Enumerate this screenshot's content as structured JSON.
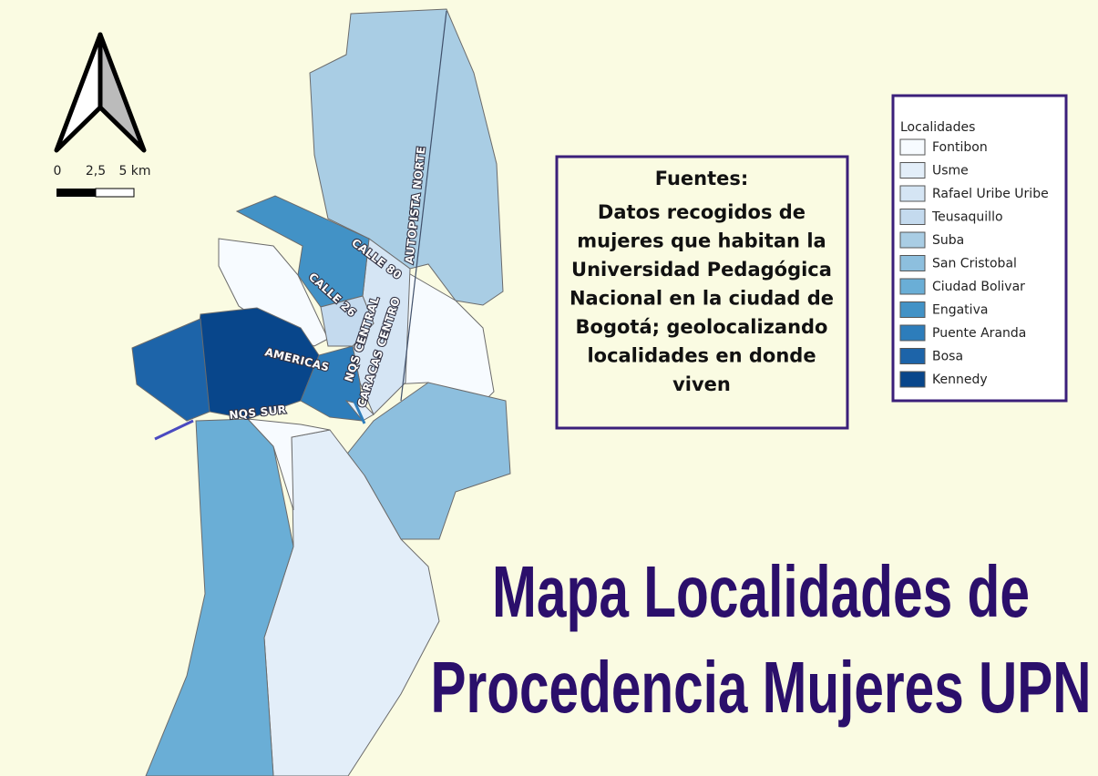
{
  "title": [
    "Mapa Localidades de",
    "Procedencia Mujeres UPN"
  ],
  "sources": {
    "heading": "Fuentes:",
    "lines": [
      "Datos recogidos de",
      "mujeres que habitan la",
      "Universidad Pedagógica",
      "Nacional en la ciudad de",
      "Bogotá; geolocalizando",
      "localidades en donde",
      "viven"
    ]
  },
  "legend": {
    "title": "Localidades",
    "items": [
      {
        "label": "Fontibon",
        "color": "#f7fbff"
      },
      {
        "label": "Usme",
        "color": "#e3eef9"
      },
      {
        "label": "Rafael Uribe Uribe",
        "color": "#d5e5f4"
      },
      {
        "label": "Teusaquillo",
        "color": "#c4daee"
      },
      {
        "label": "Suba",
        "color": "#a9cde4"
      },
      {
        "label": "San Cristobal",
        "color": "#8dbfde"
      },
      {
        "label": "Ciudad Bolivar",
        "color": "#6aaed6"
      },
      {
        "label": "Engativa",
        "color": "#4292c6"
      },
      {
        "label": "Puente Aranda",
        "color": "#2d7dbb"
      },
      {
        "label": "Bosa",
        "color": "#1d64a9"
      },
      {
        "label": "Kennedy",
        "color": "#08468b"
      }
    ]
  },
  "scale_bar": {
    "labels": [
      "0",
      "2,5",
      "5 km"
    ]
  },
  "road_labels": [
    "AUTOPISTA NORTE",
    "CALLE 80",
    "CALLE 26",
    "AMERICAS",
    "NQS CENTRAL",
    "CARACAS CENTRO",
    "NQS SUR"
  ]
}
